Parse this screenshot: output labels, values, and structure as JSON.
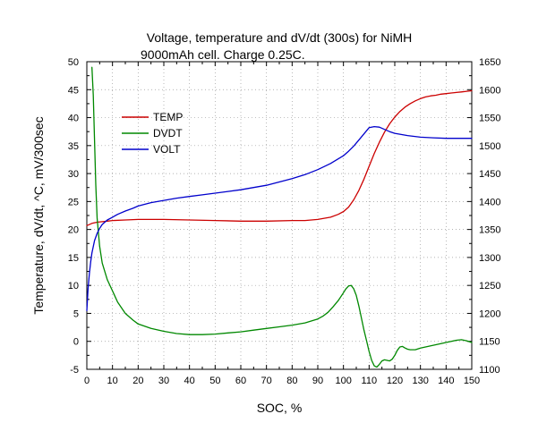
{
  "chart_data": {
    "type": "line",
    "title_lines": [
      "Voltage, temperature and dV/dt (300s) for NiMH",
      "9000mAh cell. Charge 0.25C."
    ],
    "xlabel": "SOC, %",
    "ylabel_left": "Temperature, dV/dt, ^C, mV/300sec",
    "ylabel_right": "",
    "xlim": [
      0,
      150
    ],
    "ylim_left": [
      -5,
      50
    ],
    "ylim_right": [
      1100,
      1650
    ],
    "x_ticks": [
      "0",
      "10",
      "20",
      "30",
      "40",
      "50",
      "60",
      "70",
      "80",
      "90",
      "100",
      "110",
      "120",
      "130",
      "140",
      "150"
    ],
    "y_left_ticks": [
      "-5",
      "0",
      "5",
      "10",
      "15",
      "20",
      "25",
      "30",
      "35",
      "40",
      "45",
      "50"
    ],
    "y_right_ticks": [
      "1100",
      "1150",
      "1200",
      "1250",
      "1300",
      "1350",
      "1400",
      "1450",
      "1500",
      "1550",
      "1600",
      "1650"
    ],
    "grid": true,
    "legend_position": "upper-left",
    "series": [
      {
        "name": "TEMP",
        "axis": "left",
        "color": "#cc0000",
        "x": [
          0,
          2,
          4,
          6,
          8,
          10,
          15,
          20,
          30,
          40,
          50,
          60,
          70,
          80,
          85,
          90,
          95,
          98,
          100,
          102,
          104,
          106,
          108,
          110,
          112,
          114,
          116,
          118,
          120,
          122,
          124,
          126,
          128,
          130,
          132,
          134,
          136,
          138,
          140,
          142,
          144,
          146,
          148,
          150
        ],
        "y": [
          20.7,
          21.1,
          21.3,
          21.4,
          21.5,
          21.6,
          21.7,
          21.8,
          21.8,
          21.7,
          21.6,
          21.5,
          21.5,
          21.6,
          21.6,
          21.8,
          22.2,
          22.7,
          23.2,
          24.0,
          25.3,
          27.0,
          29.0,
          31.3,
          33.6,
          35.6,
          37.4,
          38.9,
          40.1,
          41.1,
          41.9,
          42.5,
          43.0,
          43.4,
          43.7,
          43.9,
          44.0,
          44.2,
          44.3,
          44.4,
          44.5,
          44.6,
          44.7,
          44.8
        ]
      },
      {
        "name": "DVDT",
        "axis": "left",
        "color": "#008800",
        "x": [
          2,
          2.5,
          3,
          3.5,
          4,
          5,
          6,
          8,
          10,
          12,
          15,
          18,
          20,
          25,
          30,
          35,
          40,
          45,
          50,
          55,
          60,
          65,
          70,
          75,
          80,
          85,
          90,
          92,
          94,
          96,
          98,
          100,
          101,
          102,
          103,
          104,
          105,
          106,
          107,
          108,
          109,
          110,
          111,
          112,
          113,
          114,
          115,
          116,
          117,
          118,
          119,
          120,
          121,
          122,
          123,
          124,
          125,
          126,
          128,
          130,
          132,
          134,
          136,
          138,
          140,
          142,
          144,
          146,
          148,
          150
        ],
        "y": [
          49,
          44,
          36,
          28,
          22,
          17,
          14,
          11,
          9,
          7,
          5,
          3.8,
          3.1,
          2.3,
          1.8,
          1.4,
          1.2,
          1.2,
          1.3,
          1.5,
          1.7,
          2.0,
          2.3,
          2.6,
          2.9,
          3.3,
          4.0,
          4.5,
          5.2,
          6.2,
          7.3,
          8.7,
          9.4,
          9.9,
          10.0,
          9.4,
          8.2,
          6.3,
          4.2,
          2.0,
          0.1,
          -1.8,
          -3.4,
          -4.4,
          -4.6,
          -4.1,
          -3.5,
          -3.3,
          -3.4,
          -3.5,
          -3.2,
          -2.5,
          -1.6,
          -1.0,
          -0.9,
          -1.2,
          -1.4,
          -1.5,
          -1.5,
          -1.2,
          -1.0,
          -0.8,
          -0.6,
          -0.4,
          -0.2,
          0.0,
          0.2,
          0.3,
          0.1,
          -0.2
        ]
      },
      {
        "name": "VOLT",
        "axis": "right",
        "color": "#0000cc",
        "x": [
          0,
          0.5,
          1,
          1.5,
          2,
          3,
          4,
          5,
          6,
          8,
          10,
          12,
          15,
          18,
          20,
          25,
          30,
          35,
          40,
          45,
          50,
          55,
          60,
          65,
          70,
          75,
          80,
          85,
          90,
          95,
          100,
          102,
          104,
          106,
          108,
          110,
          112,
          114,
          116,
          118,
          120,
          125,
          130,
          135,
          140,
          145,
          150
        ],
        "y": [
          1205,
          1245,
          1272,
          1292,
          1308,
          1330,
          1343,
          1352,
          1359,
          1367,
          1372,
          1377,
          1383,
          1388,
          1392,
          1398,
          1402,
          1406,
          1409,
          1412,
          1415,
          1418,
          1421,
          1425,
          1429,
          1435,
          1441,
          1448,
          1457,
          1468,
          1482,
          1490,
          1499,
          1510,
          1521,
          1532,
          1534,
          1533,
          1529,
          1525,
          1522,
          1518,
          1515,
          1514,
          1513,
          1513,
          1513
        ]
      }
    ]
  }
}
